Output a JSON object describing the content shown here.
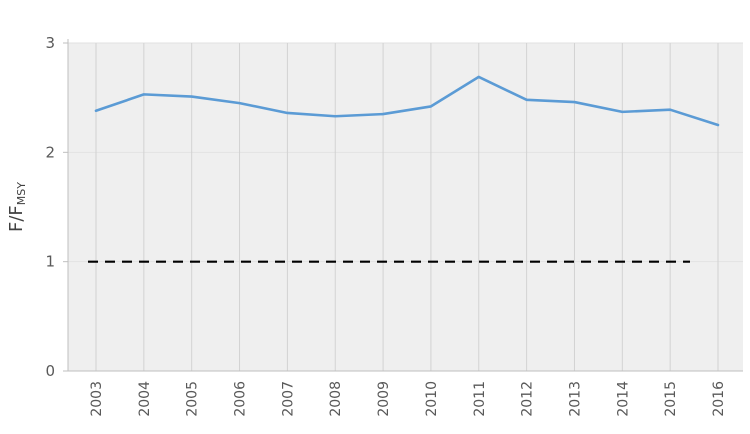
{
  "chart": {
    "ylabel_main": "F/F",
    "ylabel_sub": "MSY"
  },
  "chart_data": {
    "type": "line",
    "title": "",
    "xlabel": "",
    "ylabel": "F/F_MSY",
    "x": [
      2003,
      2004,
      2005,
      2006,
      2007,
      2008,
      2009,
      2010,
      2011,
      2012,
      2013,
      2014,
      2015,
      2016
    ],
    "series": [
      {
        "name": "F/Fmsy",
        "color": "#5b9bd5",
        "values": [
          2.38,
          2.53,
          2.51,
          2.45,
          2.36,
          2.33,
          2.35,
          2.42,
          2.69,
          2.48,
          2.46,
          2.37,
          2.39,
          2.25
        ]
      }
    ],
    "reference_line": {
      "value": 1,
      "style": "dashed",
      "color": "#000000"
    },
    "ylim": [
      0,
      3
    ],
    "yticks": [
      0,
      1,
      2,
      3
    ],
    "grid": "vertical",
    "legend": "none",
    "colors": {
      "plot_bg": "#efefef",
      "vertical_gridline": "#d2d2d2",
      "horizontal_gridline": "#e2e2e2",
      "axis_line": "#bfbfbf",
      "tick_label": "#595959",
      "axis_label": "#404040"
    }
  }
}
